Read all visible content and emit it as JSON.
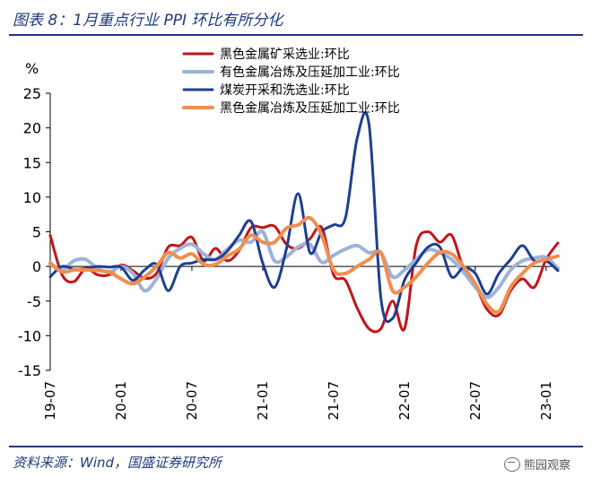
{
  "page": {
    "title": "图表 8：1月重点行业 PPI 环比有所分化",
    "source": "资料来源：Wind，国盛证券研究所",
    "watermark": "熊园观察"
  },
  "chart_data": {
    "type": "line",
    "ylabel": "%",
    "ylim": [
      -15,
      25
    ],
    "yticks": [
      25,
      20,
      15,
      10,
      5,
      0,
      -5,
      -10,
      -15
    ],
    "grid": false,
    "legend_position": "top",
    "xtick_labels": [
      "19-07",
      "20-01",
      "20-07",
      "21-01",
      "21-07",
      "22-01",
      "22-07",
      "23-01"
    ],
    "xtick_indices": [
      0,
      6,
      12,
      18,
      24,
      30,
      36,
      42
    ],
    "series": [
      {
        "name": "黑色金属矿采选业:环比",
        "color": "#c0161c",
        "values": [
          4.5,
          -1.2,
          -2.2,
          -0.3,
          -1.2,
          -1.2,
          0.2,
          -0.6,
          -1.7,
          -1.0,
          2.8,
          3.0,
          4.2,
          0.8,
          2.6,
          0.8,
          2.3,
          5.6,
          5.6,
          5.8,
          3.2,
          2.6,
          4.0,
          5.6,
          -1.2,
          -2.0,
          -6.0,
          -9.0,
          -9.0,
          -5.0,
          -9.0,
          3.0,
          5.0,
          3.5,
          4.5,
          -0.3,
          -2.6,
          -6.2,
          -7.0,
          -3.5,
          -1.8,
          -3.0,
          1.0,
          3.4
        ]
      },
      {
        "name": "有色金属冶炼及压延加工业:环比",
        "color": "#9db3d9",
        "values": [
          0.3,
          -0.5,
          0.8,
          1.0,
          -0.3,
          -0.8,
          0.0,
          -1.0,
          -3.5,
          -1.8,
          1.2,
          2.6,
          3.2,
          1.8,
          1.0,
          2.5,
          3.8,
          3.5,
          5.0,
          0.8,
          1.4,
          2.8,
          3.2,
          0.6,
          1.6,
          2.5,
          3.0,
          2.0,
          2.0,
          -1.5,
          -0.5,
          1.0,
          2.4,
          2.0,
          1.0,
          -0.8,
          -3.0,
          -4.5,
          -3.0,
          -0.5,
          0.8,
          1.2,
          1.3,
          -0.3
        ]
      },
      {
        "name": "煤炭开采和洗选业:环比",
        "color": "#1f3f8f",
        "values": [
          -1.5,
          0.0,
          -0.4,
          -0.3,
          0.0,
          -0.1,
          -0.1,
          -2.0,
          -0.5,
          0.3,
          -3.5,
          0.0,
          0.5,
          1.0,
          1.0,
          2.2,
          4.5,
          6.5,
          0.5,
          -3.0,
          2.5,
          10.5,
          2.0,
          5.0,
          6.0,
          7.0,
          18.5,
          20.5,
          -4.5,
          -7.5,
          -2.0,
          0.5,
          2.8,
          2.8,
          -1.5,
          -0.2,
          -1.0,
          -4.0,
          -1.0,
          1.0,
          3.0,
          0.8,
          0.8,
          -0.6
        ]
      },
      {
        "name": "黑色金属冶炼及压延加工业:环比",
        "color": "#ef8f4f",
        "values": [
          0.5,
          -0.8,
          -0.5,
          -0.5,
          -0.6,
          -0.8,
          -1.8,
          -2.5,
          -1.5,
          0.0,
          2.0,
          1.2,
          1.8,
          0.3,
          0.3,
          1.5,
          2.5,
          4.5,
          3.5,
          3.5,
          5.5,
          6.0,
          7.0,
          4.5,
          -0.5,
          -1.0,
          0.0,
          1.0,
          2.0,
          -3.5,
          -3.0,
          -1.5,
          0.5,
          2.0,
          1.8,
          0.0,
          -2.5,
          -5.5,
          -6.5,
          -3.0,
          -1.0,
          0.5,
          1.0,
          1.5
        ]
      }
    ]
  }
}
